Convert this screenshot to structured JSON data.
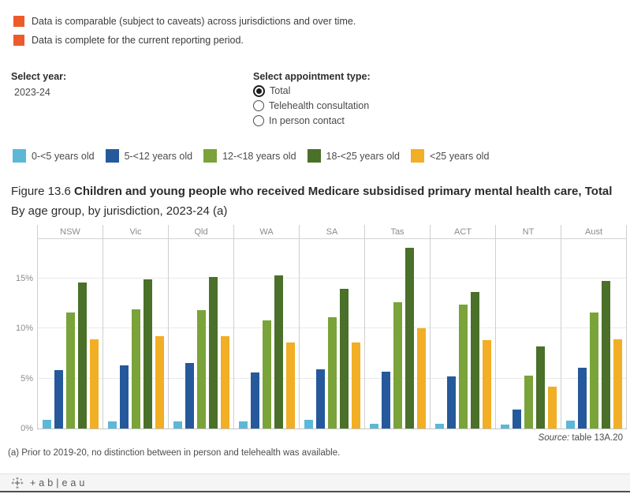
{
  "colors": {
    "caveat_square": "#EE5B2B",
    "axis_text": "#8b8b8b"
  },
  "caveats": [
    {
      "label": "Data is comparable (subject to caveats) across jurisdictions and over time."
    },
    {
      "label": "Data is complete for the current reporting period."
    }
  ],
  "controls": {
    "year_label": "Select year:",
    "year_value": "2023-24",
    "appointment_label": "Select appointment type:",
    "appointment_options": [
      {
        "label": "Total",
        "selected": true
      },
      {
        "label": "Telehealth consultation",
        "selected": false
      },
      {
        "label": "In person contact",
        "selected": false
      }
    ]
  },
  "legend": {
    "items": [
      {
        "label": "0-<5 years old",
        "color": "#5CB8D6"
      },
      {
        "label": "5-<12 years old",
        "color": "#25599B"
      },
      {
        "label": "12-<18 years old",
        "color": "#7AA339"
      },
      {
        "label": "18-<25 years old",
        "color": "#4A7029"
      },
      {
        "label": "<25 years old",
        "color": "#F2AE24"
      }
    ]
  },
  "figure": {
    "title_prefix": "Figure 13.6 ",
    "title_bold": "Children and young people who received Medicare subsidised primary mental health care, Total",
    "title_line2": "By age group, by jurisdiction, 2023-24 (a)"
  },
  "chart_data": {
    "type": "bar",
    "categories": [
      "NSW",
      "Vic",
      "Qld",
      "WA",
      "SA",
      "Tas",
      "ACT",
      "NT",
      "Aust"
    ],
    "series": [
      {
        "name": "0-<5 years old",
        "color": "#5CB8D6",
        "values": [
          0.9,
          0.7,
          0.7,
          0.7,
          0.9,
          0.5,
          0.5,
          0.4,
          0.8
        ]
      },
      {
        "name": "5-<12 years old",
        "color": "#25599B",
        "values": [
          5.8,
          6.3,
          6.5,
          5.6,
          5.9,
          5.7,
          5.2,
          1.9,
          6.1
        ]
      },
      {
        "name": "12-<18 years old",
        "color": "#7AA339",
        "values": [
          11.6,
          11.9,
          11.8,
          10.8,
          11.1,
          12.6,
          12.4,
          5.3,
          11.6
        ]
      },
      {
        "name": "18-<25 years old",
        "color": "#4A7029",
        "values": [
          14.6,
          14.9,
          15.1,
          15.3,
          13.9,
          18.0,
          13.6,
          8.2,
          14.7
        ]
      },
      {
        "name": "<25 years old",
        "color": "#F2AE24",
        "values": [
          8.9,
          9.2,
          9.2,
          8.6,
          8.6,
          10.0,
          8.8,
          4.2,
          8.9
        ]
      }
    ],
    "title": "Figure 13.6 Children and young people who received Medicare subsidised primary mental health care, Total By age group, by jurisdiction, 2023-24 (a)",
    "xlabel": "",
    "ylabel": "",
    "y_ticks": [
      "0%",
      "5%",
      "10%",
      "15%"
    ],
    "y_tick_values": [
      0,
      5,
      10,
      15
    ],
    "ylim": [
      0,
      18.9
    ],
    "grid": true,
    "legend_position": "top"
  },
  "source": {
    "prefix": "Source:",
    "text": " table 13A.20"
  },
  "footnote": "(a) Prior to 2019-20, no distinction between in person and telehealth was available.",
  "footer": {
    "brand_text": "+ab|eau"
  }
}
